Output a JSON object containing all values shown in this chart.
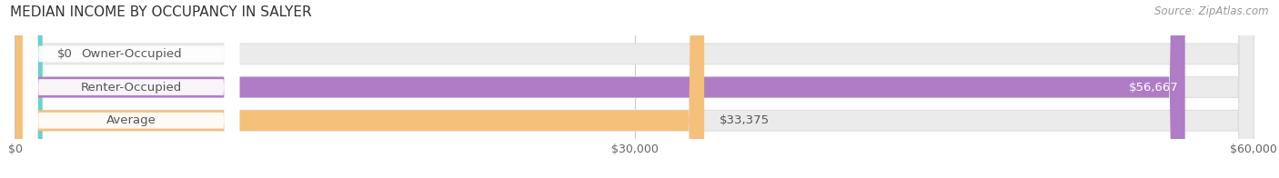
{
  "title": "MEDIAN INCOME BY OCCUPANCY IN SALYER",
  "source": "Source: ZipAtlas.com",
  "categories": [
    "Owner-Occupied",
    "Renter-Occupied",
    "Average"
  ],
  "values": [
    0,
    56667,
    33375
  ],
  "value_labels": [
    "$0",
    "$56,667",
    "$33,375"
  ],
  "value_label_inside": [
    false,
    true,
    false
  ],
  "bar_colors": [
    "#6dcfcf",
    "#b07cc6",
    "#f5c07a"
  ],
  "bar_bg_color": "#ebebeb",
  "bar_edge_color": "#dedede",
  "xlim_max": 60000,
  "xtick_values": [
    0,
    30000,
    60000
  ],
  "xtick_labels": [
    "$0",
    "$30,000",
    "$60,000"
  ],
  "title_fontsize": 11,
  "label_fontsize": 9.5,
  "tick_fontsize": 9,
  "source_fontsize": 8.5,
  "background_color": "#ffffff",
  "bar_height": 0.62,
  "grid_color": "#cccccc",
  "label_pill_color": "#ffffff",
  "label_text_color": "#555555",
  "value_text_color_inside": "#ffffff",
  "value_text_color_outside": "#555555"
}
